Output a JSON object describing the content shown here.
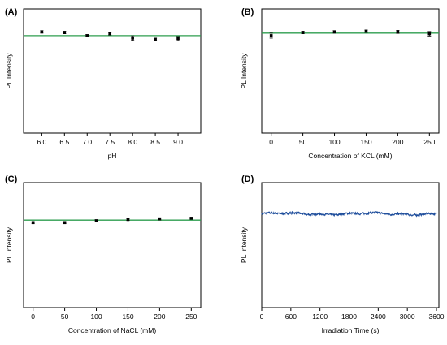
{
  "colors": {
    "fit_line": "#2e9e4f",
    "trace": "#1f4e9c",
    "marker": "#000000",
    "frame": "#000000"
  },
  "chart_data": [
    {
      "panel": "(A)",
      "type": "scatter",
      "xlabel": "pH",
      "ylabel": "PL Intensity",
      "xlim": [
        5.6,
        9.5
      ],
      "ylim": [
        0,
        1
      ],
      "xticks": [
        6.0,
        6.5,
        7.0,
        7.5,
        8.0,
        8.5,
        9.0
      ],
      "xtick_labels": [
        "6.0",
        "6.5",
        "7.0",
        "7.5",
        "8.0",
        "8.5",
        "9.0"
      ],
      "points": [
        {
          "x": 6.0,
          "y": 0.815,
          "err": 0.01
        },
        {
          "x": 6.5,
          "y": 0.81,
          "err": 0.01
        },
        {
          "x": 7.0,
          "y": 0.785,
          "err": 0.008
        },
        {
          "x": 7.5,
          "y": 0.8,
          "err": 0.01
        },
        {
          "x": 8.0,
          "y": 0.765,
          "err": 0.018
        },
        {
          "x": 8.5,
          "y": 0.755,
          "err": 0.01
        },
        {
          "x": 9.0,
          "y": 0.76,
          "err": 0.018
        }
      ],
      "fit_y": 0.785
    },
    {
      "panel": "(B)",
      "type": "scatter",
      "xlabel": "Concentration of KCL (mM)",
      "ylabel": "PL Intensity",
      "xlim": [
        -15,
        265
      ],
      "ylim": [
        0,
        1
      ],
      "xticks": [
        0,
        50,
        100,
        150,
        200,
        250
      ],
      "xtick_labels": [
        "0",
        "50",
        "100",
        "150",
        "200",
        "250"
      ],
      "points": [
        {
          "x": 0,
          "y": 0.785,
          "err": 0.02
        },
        {
          "x": 50,
          "y": 0.81,
          "err": 0.01
        },
        {
          "x": 100,
          "y": 0.815,
          "err": 0.01
        },
        {
          "x": 150,
          "y": 0.82,
          "err": 0.01
        },
        {
          "x": 200,
          "y": 0.815,
          "err": 0.012
        },
        {
          "x": 250,
          "y": 0.8,
          "err": 0.018
        }
      ],
      "fit_y": 0.805
    },
    {
      "panel": "(C)",
      "type": "scatter",
      "xlabel": "Concentration of NaCL (mM)",
      "ylabel": "PL Intensity",
      "xlim": [
        -15,
        265
      ],
      "ylim": [
        0,
        1
      ],
      "xticks": [
        0,
        50,
        100,
        150,
        200,
        250
      ],
      "xtick_labels": [
        "0",
        "50",
        "100",
        "150",
        "200",
        "250"
      ],
      "points": [
        {
          "x": 0,
          "y": 0.68,
          "err": 0.006
        },
        {
          "x": 50,
          "y": 0.68,
          "err": 0.006
        },
        {
          "x": 100,
          "y": 0.695,
          "err": 0.008
        },
        {
          "x": 150,
          "y": 0.705,
          "err": 0.006
        },
        {
          "x": 200,
          "y": 0.71,
          "err": 0.008
        },
        {
          "x": 250,
          "y": 0.715,
          "err": 0.006
        }
      ],
      "fit_y": 0.7
    },
    {
      "panel": "(D)",
      "type": "line",
      "xlabel": "Irradiation Time (s)",
      "ylabel": "PL Intensity",
      "xlim": [
        0,
        3650
      ],
      "ylim": [
        0,
        1
      ],
      "xticks": [
        0,
        600,
        1200,
        1800,
        2400,
        3000,
        3600
      ],
      "xtick_labels": [
        "0",
        "600",
        "1200",
        "1800",
        "2400",
        "3000",
        "3600"
      ],
      "trace": {
        "x_start": 0,
        "x_end": 3600,
        "mean": 0.75,
        "noise": 0.012
      }
    }
  ]
}
